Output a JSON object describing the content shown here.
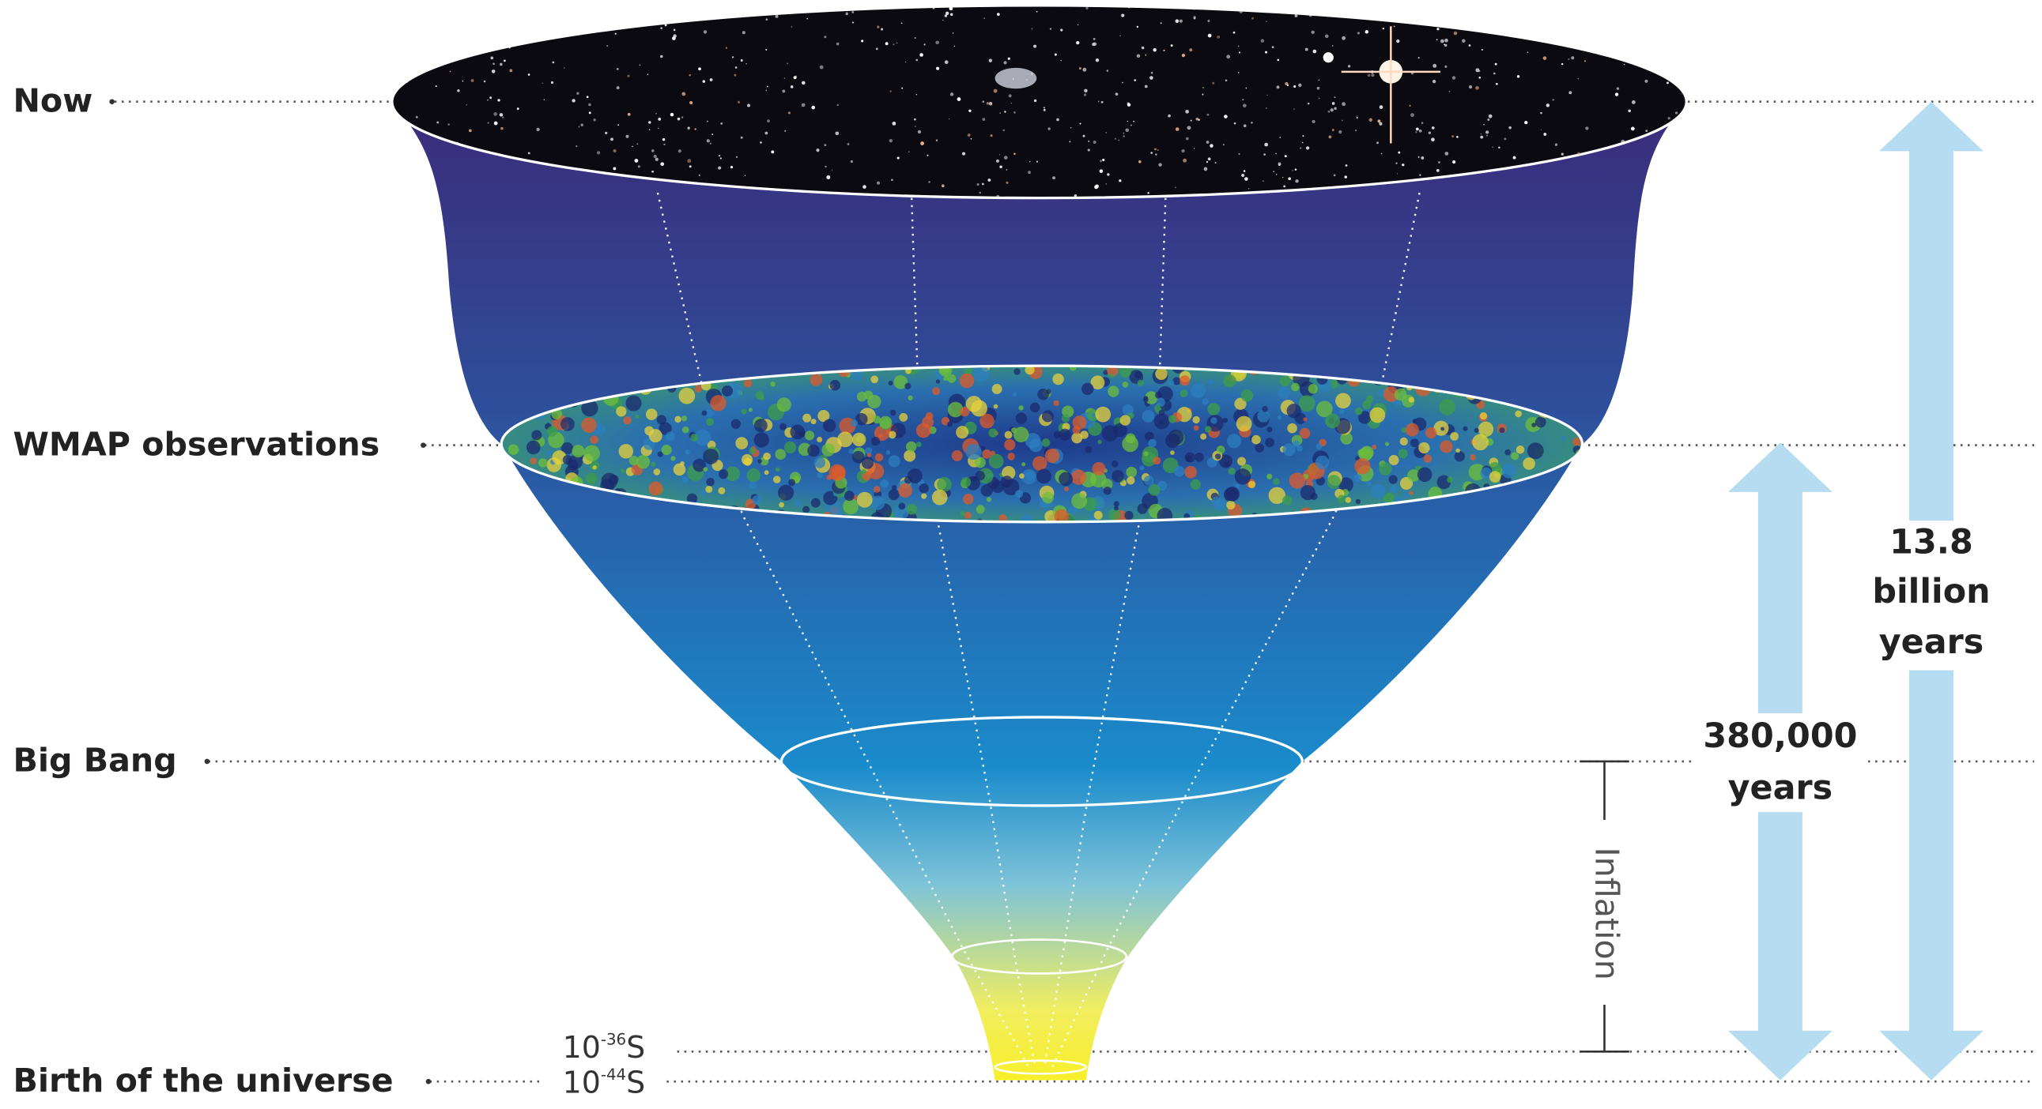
{
  "labels": [
    "Now",
    "WMAP observations",
    "Big Bang",
    "Birth of the universe"
  ],
  "times": [
    {
      "base": "10",
      "exponent": "-36",
      "unit": "S"
    },
    {
      "base": "10",
      "exponent": "-44",
      "unit": "S"
    }
  ],
  "inflation": "Inflation",
  "spans": [
    {
      "lines": [
        "13.8",
        "billion",
        "years"
      ]
    },
    {
      "lines": [
        "380,000",
        "years"
      ]
    }
  ]
}
